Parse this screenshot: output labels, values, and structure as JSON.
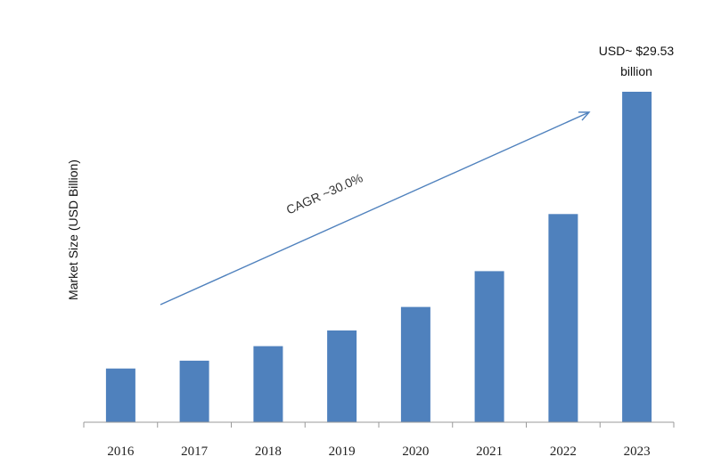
{
  "chart_data": {
    "type": "bar",
    "title": "",
    "xlabel": "",
    "ylabel": "Market Size (USD Billion)",
    "categories": [
      "2016",
      "2017",
      "2018",
      "2019",
      "2020",
      "2021",
      "2022",
      "2023"
    ],
    "values": [
      4.8,
      5.5,
      6.8,
      8.2,
      10.3,
      13.5,
      18.6,
      29.53
    ],
    "ylim": [
      0,
      29.53
    ],
    "grid": false,
    "legend": "none",
    "bar_color": "#4f81bd",
    "arrow_color": "#4f81bd",
    "annotations": {
      "cagr": "CAGR ~30.0%",
      "last_value_line1": "USD~ $29.53",
      "last_value_line2": "billion"
    }
  }
}
